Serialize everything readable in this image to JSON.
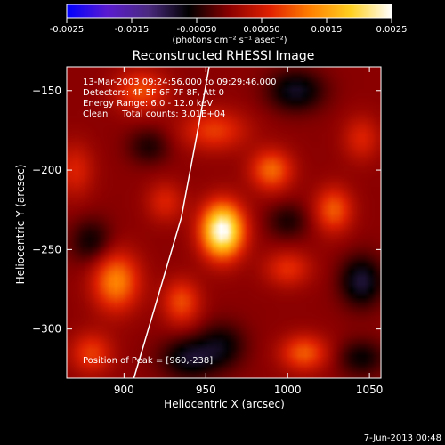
{
  "chart_data": {
    "type": "heatmap",
    "title": "Reconstructed RHESSI Image",
    "xlabel": "Heliocentric X (arcsec)",
    "ylabel": "Heliocentric Y (arcsec)",
    "xlim": [
      865,
      1057
    ],
    "ylim": [
      -331,
      -135
    ],
    "xticks": [
      900,
      950,
      1000,
      1050
    ],
    "yticks": [
      -150,
      -200,
      -250,
      -300
    ],
    "colorbar": {
      "range": [
        -0.0025,
        0.0025
      ],
      "ticks": [
        "-0.0025",
        "-0.0015",
        "-0.00050",
        "0.00050",
        "0.0015",
        "0.0025"
      ],
      "label": "(photons cm⁻² s⁻¹ asec⁻²)",
      "colors": [
        "#0000ff",
        "#5a1bd0",
        "#4b2a80",
        "#000000",
        "#8a0000",
        "#e02000",
        "#ff8000",
        "#ffd020",
        "#ffffff"
      ]
    },
    "annotations": [
      "13-Mar-2003 09:24:56.000 to 09:29:46.000",
      "Detectors: 4F 5F 6F 7F 8F, Att 0",
      "Energy Range: 6.0 - 12.0 keV",
      "Clean     Total counts: 3.01E+04"
    ],
    "peak_label": "Position of Peak = [960,-238]",
    "peak": [
      960,
      -238
    ],
    "timestamp": "7-Jun-2013 00:48",
    "limb": [
      [
        906,
        -331
      ],
      [
        935,
        -230
      ],
      [
        946,
        -170
      ],
      [
        952,
        -135
      ]
    ],
    "sources": [
      {
        "x": 960,
        "y": -238,
        "v": 0.0026,
        "sx": 9,
        "sy": 12
      },
      {
        "x": 895,
        "y": -270,
        "v": 0.0013,
        "sx": 10,
        "sy": 13
      },
      {
        "x": 990,
        "y": -200,
        "v": 0.0011,
        "sx": 9,
        "sy": 9
      },
      {
        "x": 910,
        "y": -150,
        "v": 0.0009,
        "sx": 11,
        "sy": 9
      },
      {
        "x": 935,
        "y": -283,
        "v": 0.0009,
        "sx": 8,
        "sy": 10
      },
      {
        "x": 1010,
        "y": -315,
        "v": 0.001,
        "sx": 10,
        "sy": 8
      },
      {
        "x": 1028,
        "y": -225,
        "v": 0.001,
        "sx": 8,
        "sy": 10
      },
      {
        "x": 880,
        "y": -315,
        "v": 0.0008,
        "sx": 9,
        "sy": 9
      },
      {
        "x": 955,
        "y": -175,
        "v": 0.0008,
        "sx": 14,
        "sy": 9
      },
      {
        "x": 1000,
        "y": -262,
        "v": 0.0007,
        "sx": 10,
        "sy": 8
      },
      {
        "x": 1045,
        "y": -180,
        "v": 0.0006,
        "sx": 8,
        "sy": 10
      },
      {
        "x": 925,
        "y": -220,
        "v": 0.0006,
        "sx": 8,
        "sy": 9
      },
      {
        "x": 870,
        "y": -200,
        "v": 0.0006,
        "sx": 8,
        "sy": 12
      },
      {
        "x": 1005,
        "y": -150,
        "v": -0.0008,
        "sx": 12,
        "sy": 9
      },
      {
        "x": 1045,
        "y": -270,
        "v": -0.0009,
        "sx": 9,
        "sy": 11
      },
      {
        "x": 940,
        "y": -318,
        "v": -0.0008,
        "sx": 12,
        "sy": 9
      },
      {
        "x": 960,
        "y": -310,
        "v": -0.0006,
        "sx": 10,
        "sy": 10
      },
      {
        "x": 880,
        "y": -245,
        "v": -0.0006,
        "sx": 9,
        "sy": 10
      },
      {
        "x": 1045,
        "y": -318,
        "v": -0.0006,
        "sx": 10,
        "sy": 8
      },
      {
        "x": 1000,
        "y": -232,
        "v": -0.0005,
        "sx": 9,
        "sy": 8
      },
      {
        "x": 915,
        "y": -185,
        "v": -0.0005,
        "sx": 9,
        "sy": 8
      }
    ]
  }
}
